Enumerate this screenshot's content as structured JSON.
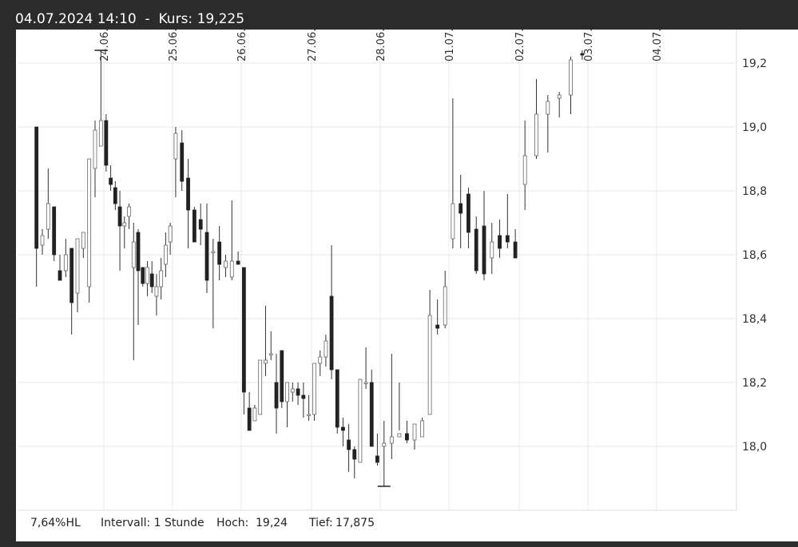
{
  "header": {
    "datetime": "04.07.2024 14:10",
    "separator": "-",
    "price_label": "Kurs:",
    "price_value": "19,225"
  },
  "footer": {
    "range_pct": "7,64%HL",
    "interval": "Intervall: 1 Stunde",
    "high_label": "Hoch:",
    "high_value": "19,24",
    "low_label": "Tief:",
    "low_value": "17,875"
  },
  "colors": {
    "bull": "#ffffff",
    "bear": "#222222",
    "grid": "#e8e8e8",
    "wick": "#333333"
  },
  "chart_data": {
    "type": "candlestick",
    "ylim": [
      17.8,
      19.35
    ],
    "y_ticks": [
      18.0,
      18.2,
      18.4,
      18.6,
      18.8,
      19.0,
      19.2
    ],
    "y_tick_labels": [
      "18,0",
      "18,2",
      "18,4",
      "18,6",
      "18,8",
      "19,0",
      "19,2"
    ],
    "x_tick_labels": [
      "24.06.",
      "25.06.",
      "26.06.",
      "27.06.",
      "28.06.",
      "01.07.",
      "02.07.",
      "03.07.",
      "04.07."
    ],
    "grid": true,
    "high_marker": 19.24,
    "low_marker": 17.875,
    "days": [
      [
        [
          19.0,
          19.0,
          18.5,
          18.62
        ],
        [
          18.63,
          18.68,
          18.6,
          18.66
        ],
        [
          18.68,
          18.87,
          18.65,
          18.76
        ],
        [
          18.75,
          18.75,
          18.58,
          18.6
        ],
        [
          18.55,
          18.6,
          18.52,
          18.52
        ],
        [
          18.55,
          18.65,
          18.53,
          18.6
        ],
        [
          18.62,
          18.62,
          18.35,
          18.45
        ],
        [
          18.48,
          18.65,
          18.42,
          18.65
        ],
        [
          18.62,
          18.67,
          18.59,
          18.67
        ],
        [
          18.5,
          18.9,
          18.45,
          18.9
        ],
        [
          18.87,
          19.02,
          18.78,
          18.99
        ],
        [
          18.94,
          19.24,
          18.94,
          19.02
        ]
      ],
      [
        [
          19.02,
          19.04,
          18.86,
          18.88
        ],
        [
          18.84,
          18.88,
          18.8,
          18.82
        ],
        [
          18.81,
          18.83,
          18.74,
          18.76
        ],
        [
          18.75,
          18.8,
          18.55,
          18.69
        ],
        [
          18.69,
          18.72,
          18.62,
          18.7
        ],
        [
          18.72,
          18.76,
          18.68,
          18.75
        ],
        [
          18.56,
          18.7,
          18.27,
          18.64
        ],
        [
          18.67,
          18.68,
          18.38,
          18.55
        ],
        [
          18.56,
          18.56,
          18.5,
          18.51
        ],
        [
          18.51,
          18.58,
          18.47,
          18.56
        ],
        [
          18.54,
          18.58,
          18.48,
          18.5
        ],
        [
          18.47,
          18.54,
          18.41,
          18.5
        ],
        [
          18.5,
          18.59,
          18.46,
          18.55
        ],
        [
          18.57,
          18.67,
          18.53,
          18.63
        ],
        [
          18.64,
          18.7,
          18.6,
          18.69
        ]
      ],
      [
        [
          18.9,
          19.0,
          18.78,
          18.98
        ],
        [
          18.95,
          18.99,
          18.8,
          18.83
        ],
        [
          18.84,
          18.9,
          18.62,
          18.74
        ],
        [
          18.74,
          18.75,
          18.64,
          18.64
        ],
        [
          18.71,
          18.76,
          18.63,
          18.68
        ],
        [
          18.67,
          18.76,
          18.48,
          18.52
        ],
        [
          18.61,
          18.65,
          18.37,
          18.61
        ],
        [
          18.64,
          18.69,
          18.52,
          18.57
        ],
        [
          18.56,
          18.6,
          18.53,
          18.58
        ],
        [
          18.53,
          18.77,
          18.52,
          18.58
        ],
        [
          18.58,
          18.61,
          18.57,
          18.57
        ]
      ],
      [
        [
          18.56,
          18.56,
          18.1,
          18.17
        ],
        [
          18.12,
          18.17,
          18.05,
          18.05
        ],
        [
          18.08,
          18.13,
          18.09,
          18.12
        ],
        [
          18.1,
          18.27,
          18.1,
          18.27
        ],
        [
          18.26,
          18.44,
          18.22,
          18.27
        ],
        [
          18.29,
          18.36,
          18.27,
          18.29
        ],
        [
          18.2,
          18.29,
          18.04,
          18.12
        ],
        [
          18.3,
          18.3,
          18.12,
          18.14
        ],
        [
          18.14,
          18.2,
          18.06,
          18.2
        ],
        [
          18.17,
          18.2,
          18.14,
          18.18
        ],
        [
          18.18,
          18.2,
          18.13,
          18.16
        ],
        [
          18.16,
          18.2,
          18.09,
          18.15
        ],
        [
          18.1,
          18.16,
          18.08,
          18.1
        ]
      ],
      [
        [
          18.1,
          18.26,
          18.08,
          18.26
        ],
        [
          18.26,
          18.3,
          18.22,
          18.28
        ],
        [
          18.28,
          18.35,
          18.25,
          18.33
        ],
        [
          18.47,
          18.63,
          18.21,
          18.24
        ],
        [
          18.24,
          18.24,
          18.04,
          18.06
        ],
        [
          18.06,
          18.09,
          18.0,
          18.05
        ],
        [
          18.02,
          18.07,
          17.92,
          17.99
        ],
        [
          17.99,
          18.0,
          17.9,
          17.96
        ],
        [
          17.95,
          18.21,
          17.95,
          18.21
        ],
        [
          18.2,
          18.31,
          18.18,
          18.2
        ],
        [
          18.2,
          18.24,
          18.01,
          18.0
        ],
        [
          17.97,
          18.04,
          17.94,
          17.95
        ]
      ],
      [
        [
          18.0,
          18.08,
          17.875,
          18.01
        ],
        [
          18.01,
          18.29,
          17.96,
          18.03
        ],
        [
          18.03,
          18.2,
          18.05,
          18.04
        ],
        [
          18.04,
          18.08,
          18.01,
          18.02
        ],
        [
          18.02,
          18.06,
          17.99,
          18.07
        ],
        [
          18.03,
          18.09,
          18.03,
          18.08
        ],
        [
          18.1,
          18.49,
          18.1,
          18.41
        ],
        [
          18.38,
          18.46,
          18.35,
          18.37
        ],
        [
          18.38,
          18.55,
          18.37,
          18.5
        ]
      ],
      [
        [
          18.65,
          19.09,
          18.62,
          18.76
        ],
        [
          18.76,
          18.85,
          18.62,
          18.73
        ],
        [
          18.79,
          18.81,
          18.62,
          18.67
        ],
        [
          18.68,
          18.72,
          18.54,
          18.55
        ],
        [
          18.69,
          18.8,
          18.52,
          18.54
        ],
        [
          18.59,
          18.7,
          18.54,
          18.64
        ],
        [
          18.66,
          18.71,
          18.59,
          18.62
        ],
        [
          18.66,
          18.79,
          18.62,
          18.64
        ],
        [
          18.64,
          18.68,
          18.59,
          18.59
        ]
      ],
      [
        [
          18.82,
          19.02,
          18.74,
          18.91
        ],
        [
          18.91,
          19.15,
          18.9,
          19.04
        ],
        [
          19.04,
          19.1,
          18.92,
          19.08
        ],
        [
          19.09,
          19.11,
          19.03,
          19.1
        ],
        [
          19.1,
          19.22,
          19.04,
          19.21
        ],
        [
          19.23,
          19.24,
          19.21,
          19.225
        ]
      ]
    ]
  }
}
